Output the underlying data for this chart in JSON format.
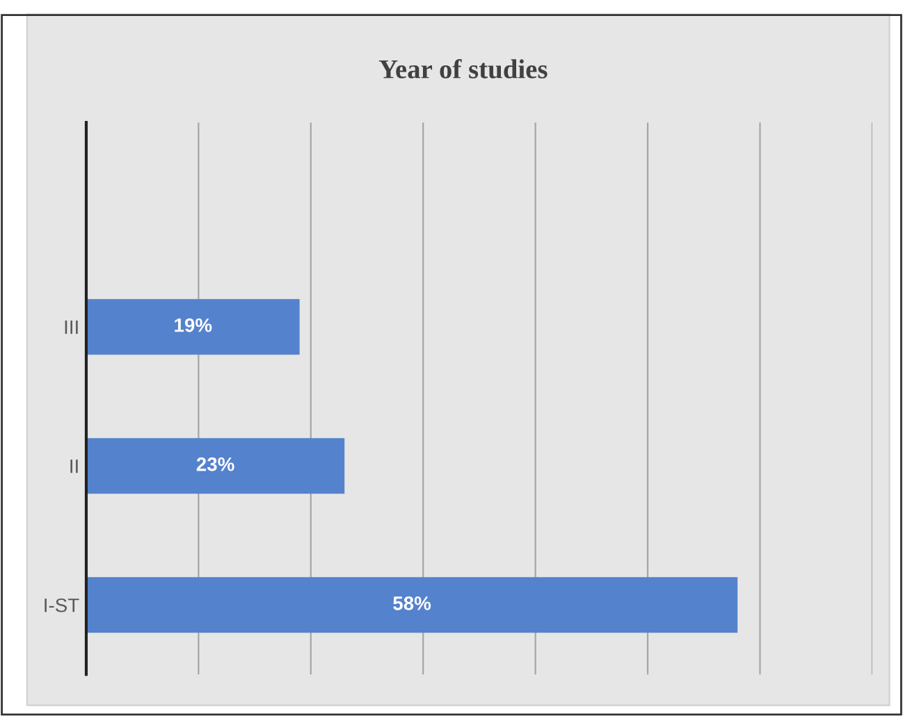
{
  "chart_data": {
    "type": "bar",
    "orientation": "horizontal",
    "title": "Year of studies",
    "categories": [
      "III",
      "II",
      "I-ST"
    ],
    "values": [
      19,
      23,
      58
    ],
    "value_labels": [
      "19%",
      "23%",
      "58%"
    ],
    "color": "#5582cc",
    "xlim": [
      0,
      70
    ],
    "xticks": [
      {
        "value": 0,
        "label": null
      },
      {
        "value": 10,
        "label": null
      },
      {
        "value": 20,
        "label": null
      },
      {
        "value": 30,
        "label": null
      },
      {
        "value": 40,
        "label": null
      },
      {
        "value": 50,
        "label": null
      },
      {
        "value": 60,
        "label": null
      },
      {
        "value": 70,
        "label": null
      }
    ],
    "tick_labels": "y",
    "grid": "x"
  }
}
